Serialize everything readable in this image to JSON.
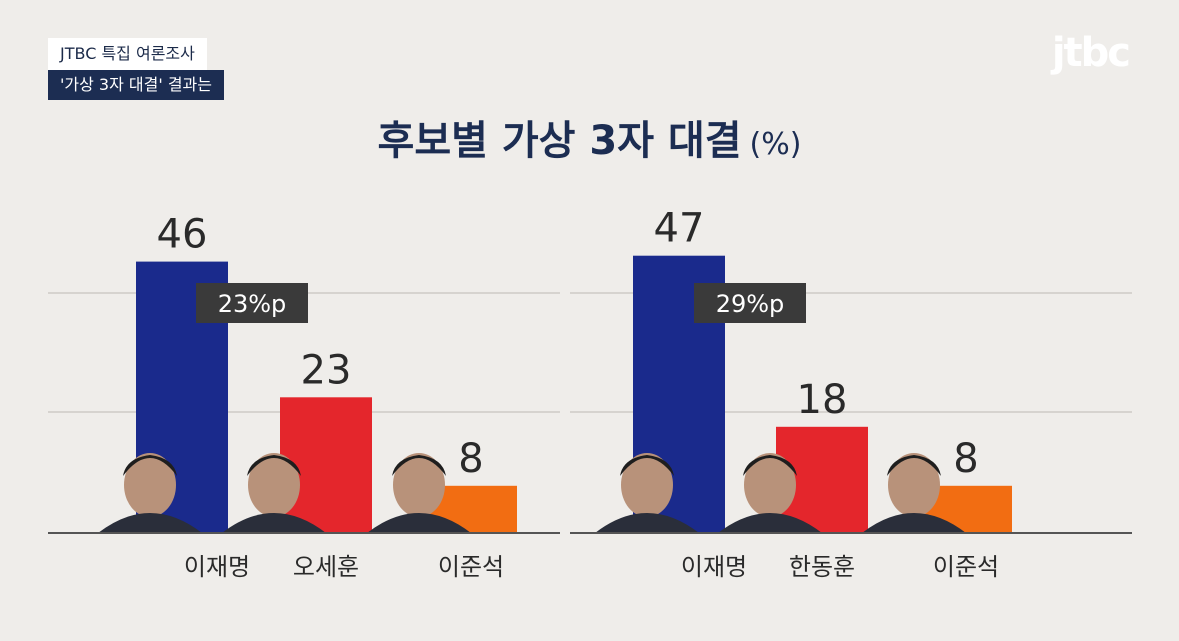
{
  "caption": {
    "line1": "JTBC 특집 여론조사",
    "line2": "'가상 3자 대결' 결과는"
  },
  "logo": "jtbc",
  "title": "후보별 가상 3자 대결",
  "title_unit": "(%)",
  "colors": {
    "blue": "#1a2a8c",
    "red": "#e4262c",
    "orange": "#f26d12",
    "diff_box": "#3a3a3a"
  },
  "chart_data": [
    {
      "type": "bar",
      "categories": [
        "이재명",
        "오세훈",
        "이준석"
      ],
      "values": [
        46,
        23,
        8
      ],
      "colors": [
        "#1a2a8c",
        "#e4262c",
        "#f26d12"
      ],
      "ylim": [
        0,
        50
      ],
      "grid": true,
      "annotation": "23%p"
    },
    {
      "type": "bar",
      "categories": [
        "이재명",
        "한동훈",
        "이준석"
      ],
      "values": [
        47,
        18,
        8
      ],
      "colors": [
        "#1a2a8c",
        "#e4262c",
        "#f26d12"
      ],
      "ylim": [
        0,
        50
      ],
      "grid": true,
      "annotation": "29%p"
    }
  ]
}
